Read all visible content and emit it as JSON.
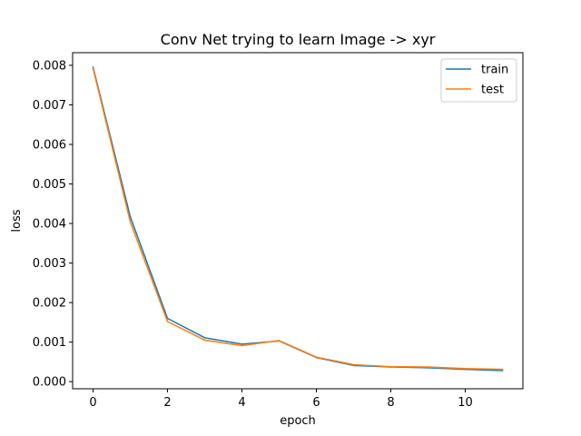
{
  "chart_data": {
    "type": "line",
    "title": "Conv Net trying to learn Image -> xyr",
    "xlabel": "epoch",
    "ylabel": "loss",
    "xlim": [
      -0.55,
      11.55
    ],
    "ylim": [
      -0.00018,
      0.00832
    ],
    "x_ticks": [
      0,
      2,
      4,
      6,
      8,
      10
    ],
    "y_ticks": [
      0.0,
      0.001,
      0.002,
      0.003,
      0.004,
      0.005,
      0.006,
      0.007,
      0.008
    ],
    "y_tick_labels": [
      "0.000",
      "0.001",
      "0.002",
      "0.003",
      "0.004",
      "0.005",
      "0.006",
      "0.007",
      "0.008"
    ],
    "x": [
      0,
      1,
      2,
      3,
      4,
      5,
      6,
      7,
      8,
      9,
      10,
      11
    ],
    "series": [
      {
        "name": "train",
        "color": "#1f77b4",
        "values": [
          0.00795,
          0.00417,
          0.0016,
          0.00111,
          0.00095,
          0.00103,
          0.00061,
          0.00041,
          0.00037,
          0.00035,
          0.00031,
          0.00028
        ]
      },
      {
        "name": "test",
        "color": "#ff7f0e",
        "values": [
          0.00792,
          0.00404,
          0.00152,
          0.00105,
          0.00091,
          0.00104,
          0.00062,
          0.00043,
          0.00038,
          0.00037,
          0.00033,
          0.00031
        ]
      }
    ],
    "grid": false,
    "legend_position": "top-right"
  }
}
